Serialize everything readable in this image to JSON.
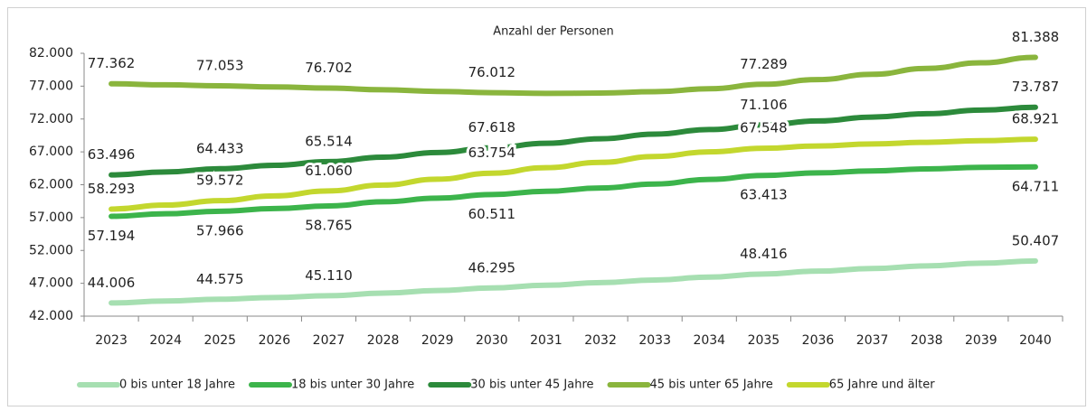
{
  "chart_data": {
    "type": "line",
    "title": "Anzahl der Personen",
    "categories": [
      "2023",
      "2024",
      "2025",
      "2026",
      "2027",
      "2028",
      "2029",
      "2030",
      "2031",
      "2032",
      "2033",
      "2034",
      "2035",
      "2036",
      "2037",
      "2038",
      "2039",
      "2040"
    ],
    "ylim": [
      42000,
      82000
    ],
    "yticks": [
      {
        "value": 42000,
        "label": "42.000"
      },
      {
        "value": 47000,
        "label": "47.000"
      },
      {
        "value": 52000,
        "label": "52.000"
      },
      {
        "value": 57000,
        "label": "57.000"
      },
      {
        "value": 62000,
        "label": "62.000"
      },
      {
        "value": 67000,
        "label": "67.000"
      },
      {
        "value": 72000,
        "label": "72.000"
      },
      {
        "value": 77000,
        "label": "77.000"
      },
      {
        "value": 82000,
        "label": "82.000"
      }
    ],
    "grid": false,
    "series": [
      {
        "name": "0 bis unter 18 Jahre",
        "color": "#a6dfb1",
        "values": [
          44006,
          44300,
          44575,
          44840,
          45110,
          45500,
          45900,
          46295,
          46700,
          47100,
          47500,
          47950,
          48416,
          48850,
          49250,
          49650,
          50050,
          50407
        ],
        "value_labels": [
          "44.006",
          null,
          "44.575",
          null,
          "45.110",
          null,
          null,
          "46.295",
          null,
          null,
          null,
          null,
          "48.416",
          null,
          null,
          null,
          null,
          "50.407"
        ]
      },
      {
        "name": "18 bis unter 30 Jahre",
        "color": "#3cb44b",
        "values": [
          57194,
          57580,
          57966,
          58370,
          58765,
          59400,
          59950,
          60511,
          61000,
          61500,
          62100,
          62800,
          63413,
          63800,
          64100,
          64400,
          64650,
          64711
        ],
        "value_labels": [
          "57.194",
          null,
          "57.966",
          null,
          "58.765",
          null,
          null,
          "60.511",
          null,
          null,
          null,
          null,
          "63.413",
          null,
          null,
          null,
          null,
          "64.711"
        ]
      },
      {
        "name": "30 bis unter 45 Jahre",
        "color": "#2c8a3b",
        "values": [
          63496,
          63950,
          64433,
          64950,
          65514,
          66200,
          66900,
          67618,
          68300,
          69000,
          69700,
          70400,
          71106,
          71700,
          72300,
          72800,
          73350,
          73787
        ],
        "value_labels": [
          "63.496",
          null,
          "64.433",
          null,
          "65.514",
          null,
          null,
          "67.618",
          null,
          null,
          null,
          null,
          "71.106",
          null,
          null,
          null,
          null,
          "73.787"
        ]
      },
      {
        "name": "45 bis unter 65 Jahre",
        "color": "#8ab53d",
        "values": [
          77362,
          77200,
          77053,
          76880,
          76702,
          76450,
          76200,
          76012,
          75900,
          75950,
          76150,
          76600,
          77289,
          78000,
          78800,
          79700,
          80550,
          81388
        ],
        "value_labels": [
          "77.362",
          null,
          "77.053",
          null,
          "76.702",
          null,
          null,
          "76.012",
          null,
          null,
          null,
          null,
          "77.289",
          null,
          null,
          null,
          null,
          "81.388"
        ]
      },
      {
        "name": "65 Jahre und älter",
        "color": "#c3d72e",
        "values": [
          58293,
          58900,
          59572,
          60300,
          61060,
          61950,
          62850,
          63754,
          64600,
          65400,
          66300,
          67000,
          67548,
          67900,
          68200,
          68450,
          68700,
          68921
        ],
        "value_labels": [
          "58.293",
          null,
          "59.572",
          null,
          "61.060",
          null,
          null,
          "63.754",
          null,
          null,
          null,
          null,
          "67.548",
          null,
          null,
          null,
          null,
          "68.921"
        ]
      }
    ]
  }
}
